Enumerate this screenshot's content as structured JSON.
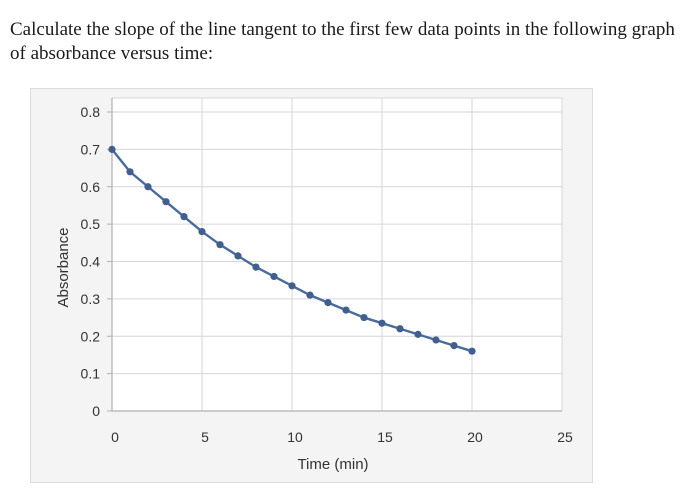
{
  "question": {
    "text": "Calculate the slope of the line tangent to the first few data points in the following graph of absorbance versus time:"
  },
  "chart_data": {
    "type": "line",
    "title": "",
    "xlabel": "Time (min)",
    "ylabel": "Absorbance",
    "xlim": [
      0,
      25
    ],
    "ylim": [
      0,
      0.8
    ],
    "x_ticks": [
      0,
      5,
      10,
      15,
      20,
      25
    ],
    "y_ticks": [
      0,
      0.1,
      0.2,
      0.3,
      0.4,
      0.5,
      0.6,
      0.7,
      0.8
    ],
    "x_tick_labels": [
      "0",
      "5",
      "10",
      "15",
      "20",
      "25"
    ],
    "y_tick_labels": [
      "0",
      "0.1",
      "0.2",
      "0.3",
      "0.4",
      "0.5",
      "0.6",
      "0.7",
      "0.8"
    ],
    "grid": true,
    "legend": "none",
    "series": [
      {
        "color": "#4a6b9b",
        "marker_color": "#3f5f8f",
        "x": [
          0,
          1,
          2,
          3,
          4,
          5,
          6,
          7,
          8,
          9,
          10,
          11,
          12,
          13,
          14,
          15,
          16,
          17,
          18,
          19,
          20
        ],
        "y": [
          0.7,
          0.64,
          0.6,
          0.56,
          0.52,
          0.48,
          0.445,
          0.415,
          0.385,
          0.36,
          0.335,
          0.31,
          0.29,
          0.27,
          0.25,
          0.235,
          0.22,
          0.205,
          0.19,
          0.175,
          0.16
        ]
      }
    ]
  }
}
